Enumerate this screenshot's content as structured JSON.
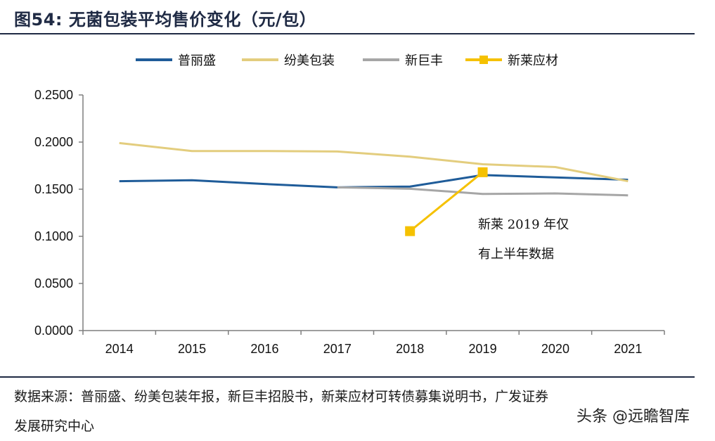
{
  "header": {
    "title": "图54:  无菌包装平均售价变化（元/包）"
  },
  "footer": {
    "source_line1": "数据来源：普丽盛、纷美包装年报，新巨丰招股书，新莱应材可转债募集说明书，广发证券",
    "source_line2": "发展研究中心",
    "watermark": "头条 @远瞻智库"
  },
  "chart_data": {
    "type": "line",
    "categories": [
      "2014",
      "2015",
      "2016",
      "2017",
      "2018",
      "2019",
      "2020",
      "2021"
    ],
    "ylim": [
      0,
      0.25
    ],
    "yticks": [
      "0.0000",
      "0.0500",
      "0.1000",
      "0.1500",
      "0.2000",
      "0.2500"
    ],
    "legend_position": "top",
    "grid": false,
    "series": [
      {
        "name": "普丽盛",
        "color": "#1f5c99",
        "marker": "none",
        "values": [
          0.1585,
          0.1595,
          0.1555,
          0.152,
          0.1528,
          0.165,
          0.1625,
          0.16
        ]
      },
      {
        "name": "纷美包装",
        "color": "#e3cd7e",
        "marker": "none",
        "values": [
          0.199,
          0.1905,
          0.1905,
          0.19,
          0.1845,
          0.1765,
          0.1735,
          0.1585
        ]
      },
      {
        "name": "新巨丰",
        "color": "#a6a6a6",
        "marker": "none",
        "values": [
          null,
          null,
          null,
          0.152,
          0.1505,
          0.145,
          0.1455,
          0.1435
        ]
      },
      {
        "name": "新莱应材",
        "color": "#f5c100",
        "marker": "square",
        "values": [
          null,
          null,
          null,
          null,
          0.1055,
          0.168,
          null,
          null
        ]
      }
    ],
    "annotation": [
      "新莱 2019 年仅",
      "有上半年数据"
    ]
  }
}
